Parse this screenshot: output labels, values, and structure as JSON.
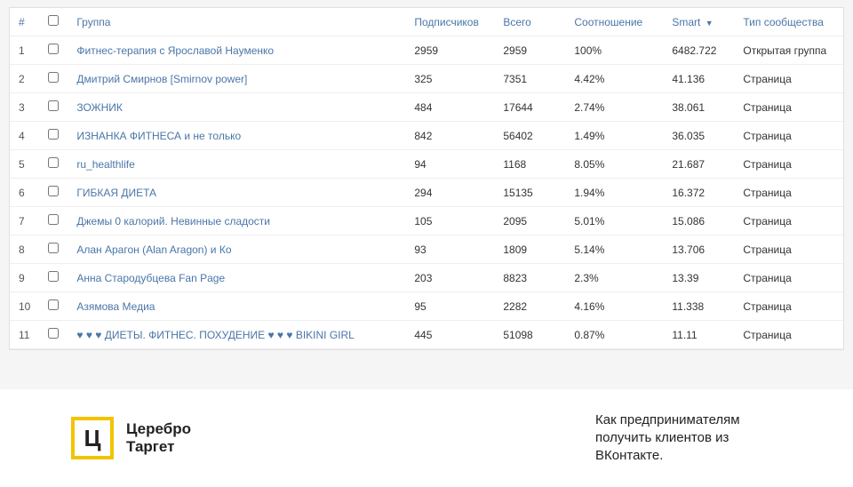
{
  "table": {
    "columns": {
      "num": "#",
      "group": "Группа",
      "subscribers": "Подписчиков",
      "total": "Всего",
      "ratio": "Соотношение",
      "smart": "Smart",
      "type": "Тип сообщества"
    },
    "sort_indicator": "▼",
    "rows": [
      {
        "n": "1",
        "name": "Фитнес-терапия с Ярославой Науменко",
        "sub": "2959",
        "total": "2959",
        "ratio": "100%",
        "smart": "6482.722",
        "type": "Открытая группа"
      },
      {
        "n": "2",
        "name": "Дмитрий Смирнов [Smirnov power]",
        "sub": "325",
        "total": "7351",
        "ratio": "4.42%",
        "smart": "41.136",
        "type": "Страница"
      },
      {
        "n": "3",
        "name": "ЗОЖНИК",
        "sub": "484",
        "total": "17644",
        "ratio": "2.74%",
        "smart": "38.061",
        "type": "Страница"
      },
      {
        "n": "4",
        "name": "ИЗНАНКА ФИТНЕСА и не только",
        "sub": "842",
        "total": "56402",
        "ratio": "1.49%",
        "smart": "36.035",
        "type": "Страница"
      },
      {
        "n": "5",
        "name": "ru_healthlife",
        "sub": "94",
        "total": "1168",
        "ratio": "8.05%",
        "smart": "21.687",
        "type": "Страница"
      },
      {
        "n": "6",
        "name": "ГИБКАЯ ДИЕТА",
        "sub": "294",
        "total": "15135",
        "ratio": "1.94%",
        "smart": "16.372",
        "type": "Страница"
      },
      {
        "n": "7",
        "name": "Джемы 0 калорий. Невинные сладости",
        "sub": "105",
        "total": "2095",
        "ratio": "5.01%",
        "smart": "15.086",
        "type": "Страница"
      },
      {
        "n": "8",
        "name": "Алан Арагон (Alan Aragon) и Ко",
        "sub": "93",
        "total": "1809",
        "ratio": "5.14%",
        "smart": "13.706",
        "type": "Страница"
      },
      {
        "n": "9",
        "name": "Анна Стародубцева Fan Page",
        "sub": "203",
        "total": "8823",
        "ratio": "2.3%",
        "smart": "13.39",
        "type": "Страница"
      },
      {
        "n": "10",
        "name": "Азямова Медиа",
        "sub": "95",
        "total": "2282",
        "ratio": "4.16%",
        "smart": "11.338",
        "type": "Страница"
      },
      {
        "n": "11",
        "name": "♥ ♥ ♥ ДИЕТЫ. ФИТНЕС. ПОХУДЕНИЕ ♥ ♥ ♥ BIKINI GIRL",
        "sub": "445",
        "total": "51098",
        "ratio": "0.87%",
        "smart": "11.11",
        "type": "Страница"
      }
    ]
  },
  "footer": {
    "logo_letter": "Ц",
    "logo_line1": "Церебро",
    "logo_line2": "Таргет",
    "tagline": "Как предпринимателям получить клиентов из ВКонтакте."
  }
}
